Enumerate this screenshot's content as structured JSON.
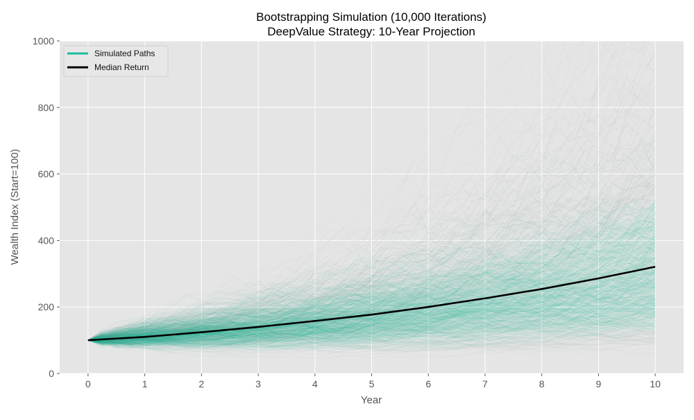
{
  "chart_data": {
    "type": "line",
    "title": "Bootstrapping Simulation (10,000 Iterations)",
    "subtitle": "DeepValue Strategy: 10-Year Projection",
    "xlabel": "Year",
    "ylabel": "Wealth Index (Start=100)",
    "xlim": [
      -0.5,
      10.5
    ],
    "ylim": [
      0,
      1000
    ],
    "xticks": [
      0,
      1,
      2,
      3,
      4,
      5,
      6,
      7,
      8,
      9,
      10
    ],
    "yticks": [
      0,
      200,
      400,
      600,
      800,
      1000
    ],
    "grid": true,
    "legend_position": "top-left",
    "series": [
      {
        "name": "Simulated Paths",
        "color": "#1abc9c",
        "iterations": 10000
      },
      {
        "name": "Median Return",
        "color": "#000000",
        "x": [
          0,
          1,
          2,
          3,
          4,
          5,
          6,
          7,
          8,
          9,
          10
        ],
        "values": [
          100,
          110,
          124,
          140,
          158,
          177,
          200,
          226,
          254,
          286,
          321
        ]
      }
    ],
    "background": "#e5e5e5"
  }
}
